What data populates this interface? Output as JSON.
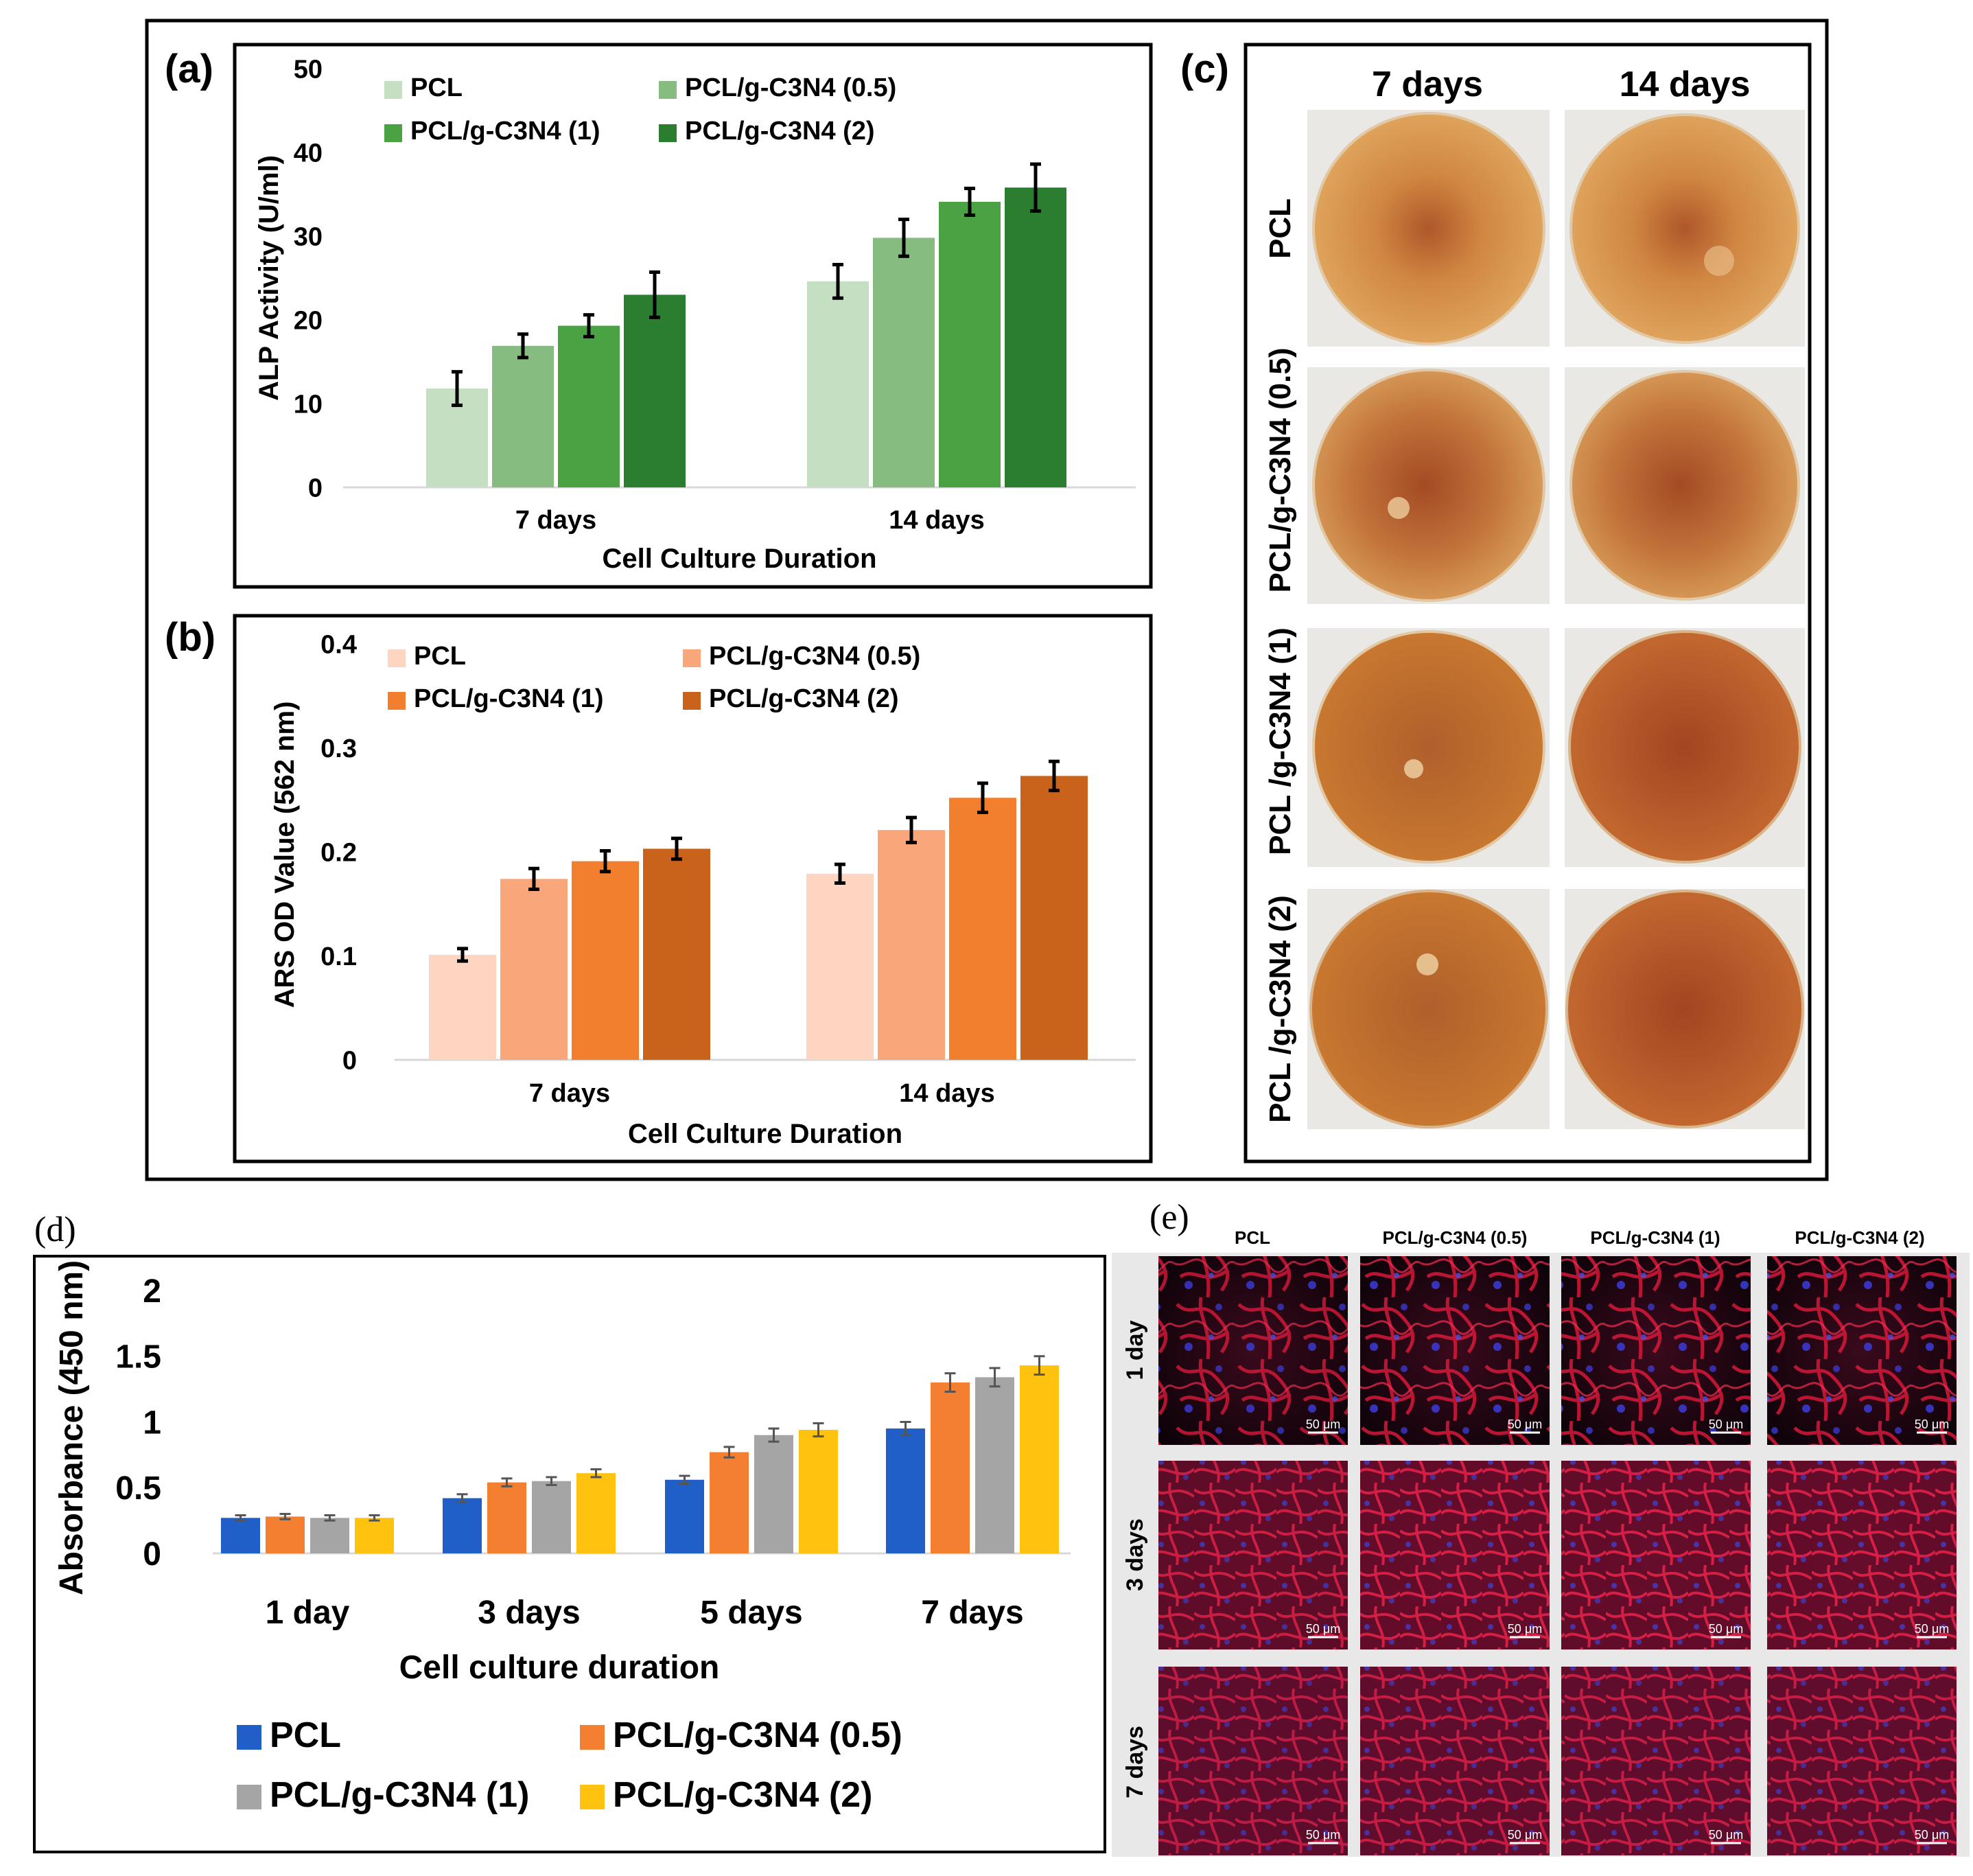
{
  "chart_data": [
    {
      "panel": "(a)",
      "type": "bar",
      "categories": [
        "7 days",
        "14 days"
      ],
      "series": [
        {
          "name": "PCL",
          "color": "#c5dfc2",
          "values": [
            11.8,
            24.6
          ],
          "errors": [
            2.0,
            2.0
          ]
        },
        {
          "name": "PCL/g-C3N4 (0.5)",
          "color": "#86bc80",
          "values": [
            16.9,
            29.8
          ],
          "errors": [
            1.4,
            2.2
          ]
        },
        {
          "name": "PCL/g-C3N4 (1)",
          "color": "#4aa243",
          "values": [
            19.3,
            34.1
          ],
          "errors": [
            1.3,
            1.6
          ]
        },
        {
          "name": "PCL/g-C3N4 (2)",
          "color": "#2b7d2f",
          "values": [
            23.0,
            35.8
          ],
          "errors": [
            2.7,
            2.8
          ]
        }
      ],
      "xlabel": "Cell Culture Duration",
      "ylabel": "ALP Activity (U/ml)",
      "ylim": [
        0,
        50
      ],
      "yticks": [
        "0",
        "10",
        "20",
        "30",
        "40",
        "50"
      ],
      "grid": false,
      "legend": "top"
    },
    {
      "panel": "(b)",
      "type": "bar",
      "categories": [
        "7 days",
        "14 days"
      ],
      "series": [
        {
          "name": "PCL",
          "color": "#fdd5c1",
          "values": [
            0.101,
            0.179
          ],
          "errors": [
            0.006,
            0.009
          ]
        },
        {
          "name": "PCL/g-C3N4 (0.5)",
          "color": "#f9a77a",
          "values": [
            0.174,
            0.221
          ],
          "errors": [
            0.01,
            0.012
          ]
        },
        {
          "name": "PCL/g-C3N4 (1)",
          "color": "#f27f2d",
          "values": [
            0.191,
            0.252
          ],
          "errors": [
            0.01,
            0.014
          ]
        },
        {
          "name": "PCL/g-C3N4 (2)",
          "color": "#c9621a",
          "values": [
            0.203,
            0.273
          ],
          "errors": [
            0.01,
            0.014
          ]
        }
      ],
      "xlabel": "Cell Culture Duration",
      "ylabel": "ARS OD Value (562 nm)",
      "ylim": [
        0,
        0.4
      ],
      "yticks": [
        "0",
        "0.1",
        "0.2",
        "0.3",
        "0.4"
      ],
      "grid": false,
      "legend": "top"
    },
    {
      "panel": "(d)",
      "type": "bar",
      "categories": [
        "1 day",
        "3 days",
        "5 days",
        "7 days"
      ],
      "series": [
        {
          "name": "PCL",
          "color": "#1f5fc7",
          "values": [
            0.27,
            0.42,
            0.56,
            0.95
          ],
          "errors": [
            0.02,
            0.03,
            0.03,
            0.05
          ]
        },
        {
          "name": "PCL/g-C3N4 (0.5)",
          "color": "#f47f30",
          "values": [
            0.28,
            0.54,
            0.77,
            1.3
          ],
          "errors": [
            0.02,
            0.03,
            0.04,
            0.07
          ]
        },
        {
          "name": "PCL/g-C3N4 (1)",
          "color": "#a5a5a5",
          "values": [
            0.27,
            0.55,
            0.9,
            1.34
          ],
          "errors": [
            0.02,
            0.03,
            0.05,
            0.07
          ]
        },
        {
          "name": "PCL/g-C3N4 (2)",
          "color": "#ffc20e",
          "values": [
            0.27,
            0.61,
            0.94,
            1.43
          ],
          "errors": [
            0.02,
            0.03,
            0.05,
            0.07
          ]
        }
      ],
      "xlabel": "Cell culture duration",
      "ylabel": "Absorbance (450 nm)",
      "ylim": [
        0,
        2
      ],
      "yticks": [
        "0",
        "0.5",
        "1",
        "1.5",
        "2"
      ],
      "grid": false,
      "legend": "bottom"
    }
  ],
  "panel_labels": {
    "a": "(a)",
    "b": "(b)",
    "c": "(c)",
    "d": "(d)",
    "e": "(e)"
  },
  "panel_c": {
    "columns": [
      "7 days",
      "14 days"
    ],
    "rows": [
      "PCL",
      "PCL/g-C3N4 (0.5)",
      "PCL /g-C3N4 (1)",
      "PCL /g-C3N4 (2)"
    ]
  },
  "panel_e": {
    "columns": [
      "PCL",
      "PCL/g-C3N4 (0.5)",
      "PCL/g-C3N4 (1)",
      "PCL/g-C3N4 (2)"
    ],
    "rows": [
      "1 day",
      "3 days",
      "7 days"
    ],
    "scale_bar": "50 μm"
  }
}
